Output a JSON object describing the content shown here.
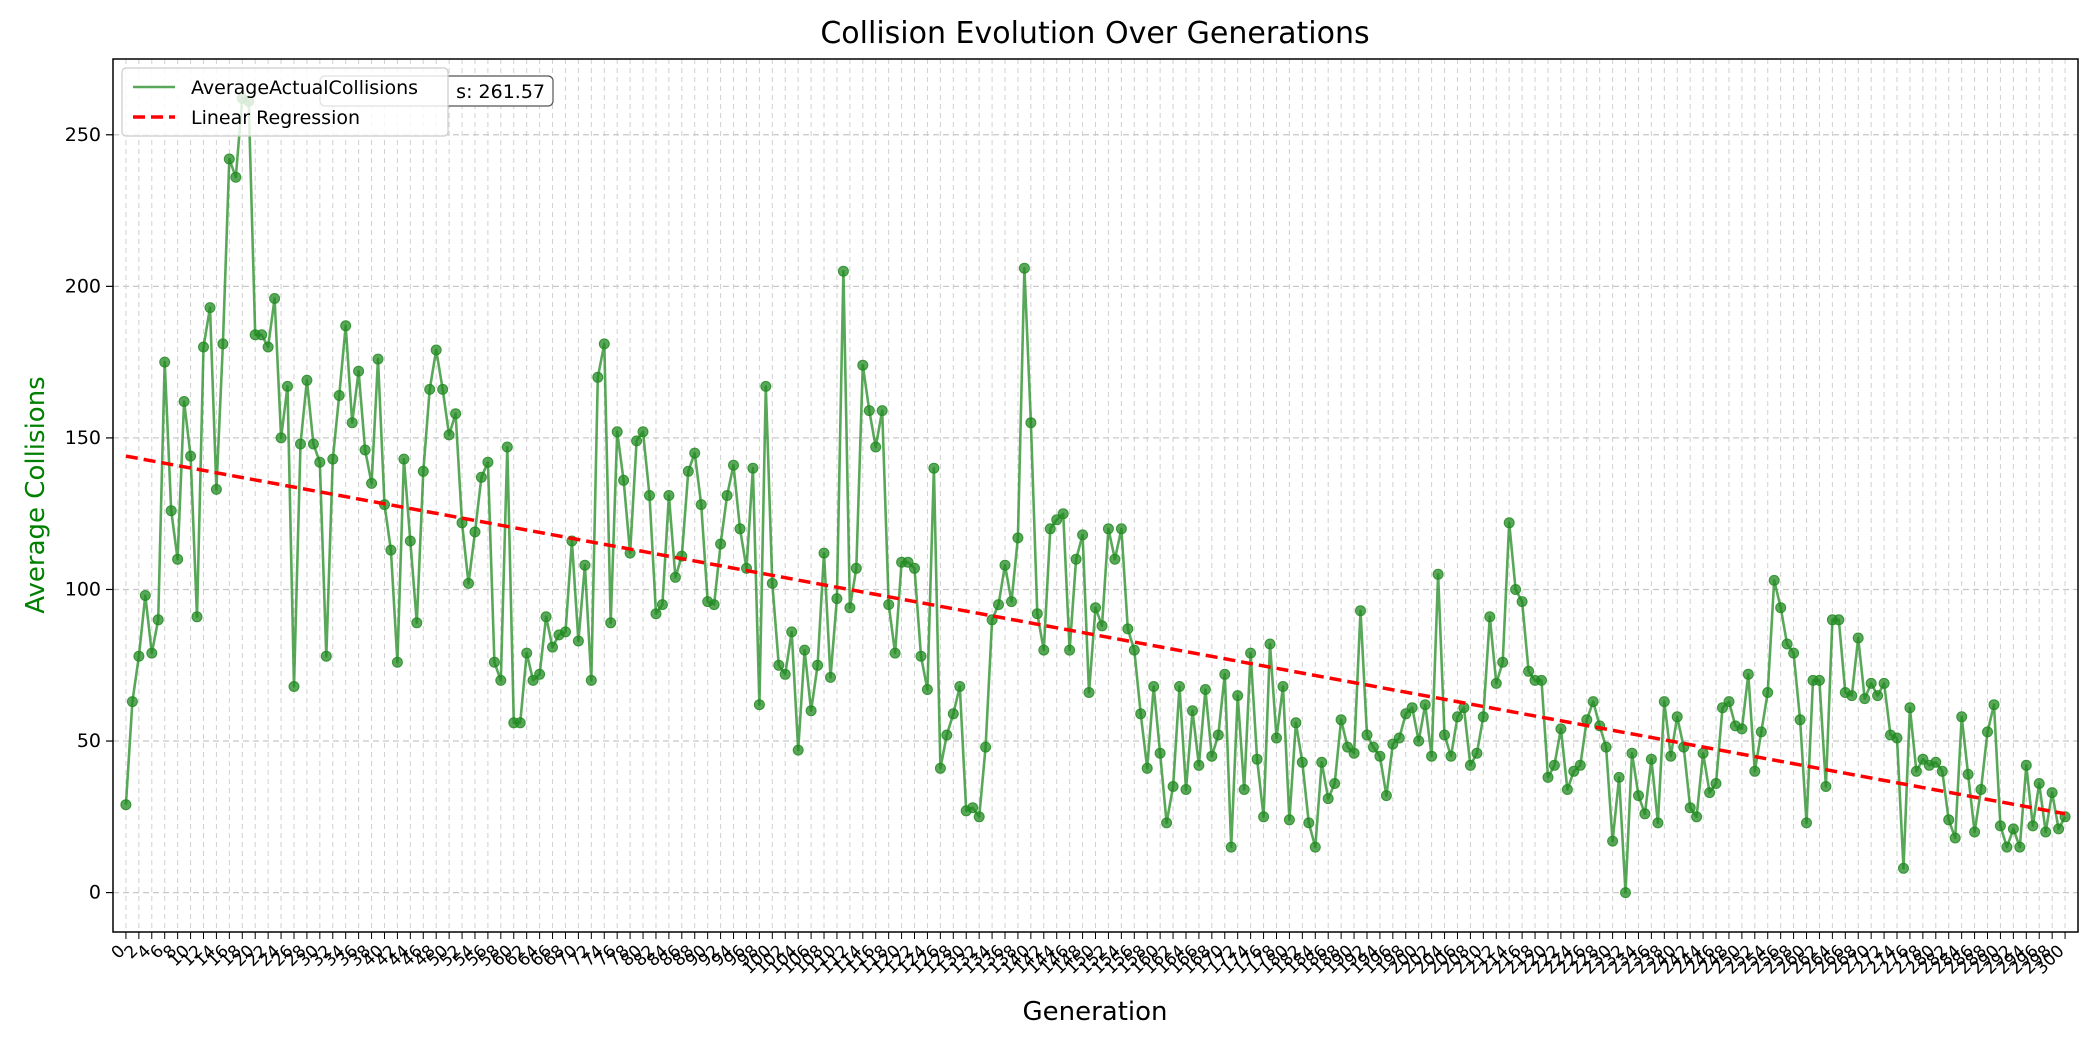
{
  "colors": {
    "series": "#228B22",
    "regression": "#FF0000",
    "ylabel": "#008000",
    "grid": "#C8C8C8",
    "axis": "#000000"
  },
  "chart_data": {
    "type": "line",
    "title": "Collision Evolution Over Generations",
    "xlabel": "Generation",
    "ylabel": "Average Collisions",
    "xlim": [
      -2,
      302
    ],
    "ylim": [
      -13,
      275
    ],
    "yticks": [
      0,
      50,
      100,
      150,
      200,
      250
    ],
    "xticks_step": 2,
    "xtick_min": 0,
    "xtick_max": 300,
    "grid": true,
    "legend_position": "top-left",
    "annotation": "s: 261.57",
    "series": [
      {
        "name": "AverageActualCollisions",
        "marker": "circle",
        "x": [
          0,
          1,
          2,
          3,
          4,
          5,
          6,
          7,
          8,
          9,
          10,
          11,
          12,
          13,
          14,
          15,
          16,
          17,
          18,
          19,
          20,
          21,
          22,
          23,
          24,
          25,
          26,
          27,
          28,
          29,
          30,
          31,
          32,
          33,
          34,
          35,
          36,
          37,
          38,
          39,
          40,
          41,
          42,
          43,
          44,
          45,
          46,
          47,
          48,
          49,
          50,
          51,
          52,
          53,
          54,
          55,
          56,
          57,
          58,
          59,
          60,
          61,
          62,
          63,
          64,
          65,
          66,
          67,
          68,
          69,
          70,
          71,
          72,
          73,
          74,
          75,
          76,
          77,
          78,
          79,
          80,
          81,
          82,
          83,
          84,
          85,
          86,
          87,
          88,
          89,
          90,
          91,
          92,
          93,
          94,
          95,
          96,
          97,
          98,
          99,
          100,
          101,
          102,
          103,
          104,
          105,
          106,
          107,
          108,
          109,
          110,
          111,
          112,
          113,
          114,
          115,
          116,
          117,
          118,
          119,
          120,
          121,
          122,
          123,
          124,
          125,
          126,
          127,
          128,
          129,
          130,
          131,
          132,
          133,
          134,
          135,
          136,
          137,
          138,
          139,
          140,
          141,
          142,
          143,
          144,
          145,
          146,
          147,
          148,
          149,
          150,
          151,
          152,
          153,
          154,
          155,
          156,
          157,
          158,
          159,
          160,
          161,
          162,
          163,
          164,
          165,
          166,
          167,
          168,
          169,
          170,
          171,
          172,
          173,
          174,
          175,
          176,
          177,
          178,
          179,
          180,
          181,
          182,
          183,
          184,
          185,
          186,
          187,
          188,
          189,
          190,
          191,
          192,
          193,
          194,
          195,
          196,
          197,
          198,
          199,
          200,
          201,
          202,
          203,
          204,
          205,
          206,
          207,
          208,
          209,
          210,
          211,
          212,
          213,
          214,
          215,
          216,
          217,
          218,
          219,
          220,
          221,
          222,
          223,
          224,
          225,
          226,
          227,
          228,
          229,
          230,
          231,
          232,
          233,
          234,
          235,
          236,
          237,
          238,
          239,
          240,
          241,
          242,
          243,
          244,
          245,
          246,
          247,
          248,
          249,
          250,
          251,
          252,
          253,
          254,
          255,
          256,
          257,
          258,
          259,
          260,
          261,
          262,
          263,
          264,
          265,
          266,
          267,
          268,
          269,
          270,
          271,
          272,
          273,
          274,
          275,
          276,
          277,
          278,
          279,
          280,
          281,
          282,
          283,
          284,
          285,
          286,
          287,
          288,
          289,
          290,
          291,
          292,
          293,
          294,
          295,
          296,
          297,
          298,
          299,
          300
        ],
        "values": [
          29,
          63,
          78,
          98,
          79,
          90,
          175,
          126,
          110,
          162,
          144,
          91,
          180,
          193,
          133,
          181,
          242,
          236,
          262,
          261,
          184,
          184,
          180,
          196,
          150,
          167,
          68,
          148,
          169,
          148,
          142,
          78,
          143,
          164,
          187,
          155,
          172,
          146,
          135,
          176,
          128,
          113,
          76,
          143,
          116,
          89,
          139,
          166,
          179,
          166,
          151,
          158,
          122,
          102,
          119,
          137,
          142,
          76,
          70,
          147,
          56,
          56,
          79,
          70,
          72,
          91,
          81,
          85,
          86,
          116,
          83,
          108,
          70,
          170,
          181,
          89,
          152,
          136,
          112,
          149,
          152,
          131,
          92,
          95,
          131,
          104,
          111,
          139,
          145,
          128,
          96,
          95,
          115,
          131,
          141,
          120,
          107,
          140,
          62,
          167,
          102,
          75,
          72,
          86,
          47,
          80,
          60,
          75,
          112,
          71,
          97,
          205,
          94,
          107,
          174,
          159,
          147,
          159,
          95,
          79,
          109,
          109,
          107,
          78,
          67,
          140,
          41,
          52,
          59,
          68,
          27,
          28,
          25,
          48,
          90,
          95,
          108,
          96,
          117,
          206,
          155,
          92,
          80,
          120,
          123,
          125,
          80,
          110,
          118,
          66,
          94,
          88,
          120,
          110,
          120,
          87,
          80,
          59,
          41,
          68,
          46,
          23,
          35,
          68,
          34,
          60,
          42,
          67,
          45,
          52,
          72,
          15,
          65,
          34,
          79,
          44,
          25,
          82,
          51,
          68,
          24,
          56,
          43,
          23,
          15,
          43,
          31,
          36,
          57,
          48,
          46,
          93,
          52,
          48,
          45,
          32,
          49,
          51,
          59,
          61,
          50,
          62,
          45,
          105,
          52,
          45,
          58,
          61,
          42,
          46,
          58,
          91,
          69,
          76,
          122,
          100,
          96,
          73,
          70,
          70,
          38,
          42,
          54,
          34,
          40,
          42,
          57,
          63,
          55,
          48,
          17,
          38,
          0,
          46,
          32,
          26,
          44,
          23,
          63,
          45,
          58,
          48,
          28,
          25,
          46,
          33,
          36,
          61,
          63,
          55,
          54,
          72,
          40,
          53,
          66,
          103,
          94,
          82,
          79,
          57,
          23,
          70,
          70,
          35,
          90,
          90,
          66,
          65,
          84,
          64,
          69,
          65,
          69,
          52,
          51,
          8,
          61,
          40,
          44,
          42,
          43,
          40,
          24,
          18,
          58,
          39,
          20,
          34,
          53,
          62,
          22,
          15,
          21,
          15,
          42,
          22,
          36,
          20,
          33,
          21,
          25
        ]
      },
      {
        "name": "Linear Regression",
        "style": "dashed",
        "x": [
          0,
          300
        ],
        "values": [
          144,
          26
        ]
      }
    ]
  }
}
